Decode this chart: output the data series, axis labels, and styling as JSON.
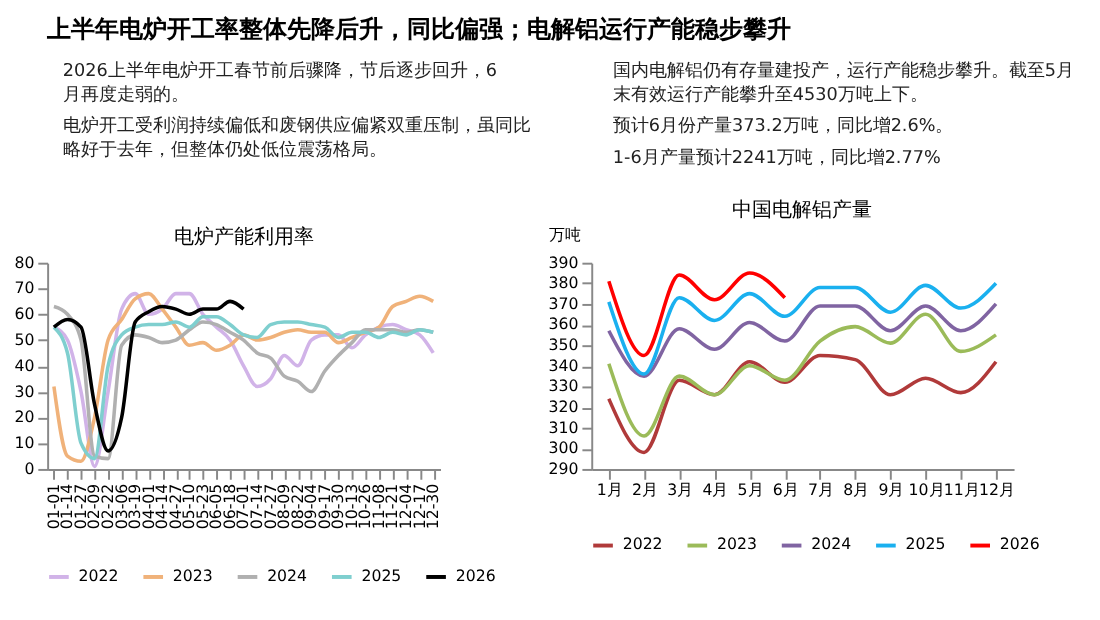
{
  "chart_data": [
    {
      "type": "other",
      "title": "上半年电炉开工率整体先降后升，同比偏强；电解铝运行产能稳步攀升",
      "annotations": [
        "2026上半年电炉开工春节前后骤降，节后逐步回升，6月再度走弱的。",
        "电炉开工受利润持续偏低和废钢供应偏紧双重压制，虽同比略好于去年，但整体仍处低位震荡格局。",
        "国内电解铝仍有存量建投产，运行产能稳步攀升。截至5月末有效运行产能攀升至4530万吨上下。",
        "预计6月份产量373.2万吨，同比增2.6%。",
        "1-6月产量预计2241万吨，同比增2.77%"
      ]
    },
    {
      "type": "line",
      "title": "电炉产能利用率",
      "categories": [
        "01-01",
        "01-14",
        "01-27",
        "02-09",
        "02-22",
        "03-06",
        "03-19",
        "04-01",
        "04-14",
        "04-27",
        "05-10",
        "05-23",
        "06-05",
        "06-18",
        "07-01",
        "07-14",
        "07-27",
        "08-09",
        "08-22",
        "09-04",
        "09-17",
        "09-30",
        "10-13",
        "10-26",
        "11-08",
        "11-21",
        "12-04",
        "12-17",
        "12-30"
      ],
      "ylim": [
        0,
        80
      ],
      "yticks": [
        0,
        10,
        20,
        30,
        40,
        50,
        60,
        70,
        80
      ],
      "grid": false,
      "legend": "bottom",
      "marker": "none",
      "line_style": "solid",
      "series": [
        {
          "name": "2022",
          "color": "#d1b3e8",
          "values": [
            55,
            50,
            30,
            1,
            30,
            62,
            68,
            60,
            62,
            68,
            68,
            60,
            55,
            50,
            40,
            32,
            35,
            44,
            40,
            50,
            52,
            52,
            47,
            52,
            55,
            56,
            54,
            52,
            45
          ]
        },
        {
          "name": "2023",
          "color": "#f0b27a",
          "values": [
            32,
            5,
            3,
            20,
            50,
            58,
            66,
            68,
            62,
            55,
            48,
            49,
            46,
            48,
            52,
            50,
            51,
            53,
            54,
            53,
            53,
            49,
            51,
            53,
            55,
            63,
            65,
            67,
            65
          ]
        },
        {
          "name": "2024",
          "color": "#b0b0b0",
          "values": [
            63,
            60,
            50,
            5,
            4,
            48,
            52,
            51,
            49,
            50,
            54,
            57,
            56,
            53,
            50,
            45,
            43,
            36,
            34,
            30,
            38,
            44,
            49,
            54,
            54,
            54,
            53,
            54,
            53
          ]
        },
        {
          "name": "2025",
          "color": "#7fcfcf",
          "values": [
            55,
            45,
            10,
            4,
            40,
            52,
            55,
            56,
            56,
            57,
            55,
            59,
            59,
            56,
            52,
            51,
            56,
            57,
            57,
            56,
            55,
            51,
            53,
            53,
            51,
            53,
            52,
            54,
            53
          ]
        },
        {
          "name": "2026",
          "color": "#000000",
          "values": [
            55,
            58,
            55,
            25,
            7,
            20,
            57,
            61,
            63,
            62,
            60,
            62,
            62,
            65,
            62,
            null,
            null,
            null,
            null,
            null,
            null,
            null,
            null,
            null,
            null,
            null,
            null,
            null,
            null
          ]
        }
      ]
    },
    {
      "type": "line",
      "title": "中国电解铝产量",
      "ylabel": "万吨",
      "categories": [
        "1月",
        "2月",
        "3月",
        "4月",
        "5月",
        "6月",
        "7月",
        "8月",
        "9月",
        "10月",
        "11月",
        "12月"
      ],
      "ylim": [
        290,
        390
      ],
      "yticks": [
        290,
        300,
        310,
        320,
        330,
        340,
        350,
        360,
        370,
        380,
        390
      ],
      "grid": false,
      "legend": "bottom",
      "marker": "none",
      "line_style": "solid",
      "series": [
        {
          "name": "2022",
          "color": "#b03a3a",
          "values": [
            324,
            298,
            333,
            326,
            342,
            332,
            345,
            343,
            326,
            334,
            327,
            342
          ]
        },
        {
          "name": "2023",
          "color": "#9bbb59",
          "values": [
            341,
            306,
            335,
            326,
            340,
            333,
            352,
            359,
            351,
            365,
            347,
            355
          ]
        },
        {
          "name": "2024",
          "color": "#8064a2",
          "values": [
            357,
            335,
            358,
            348,
            361,
            352,
            369,
            369,
            357,
            369,
            357,
            370
          ]
        },
        {
          "name": "2025",
          "color": "#1ab0ef",
          "values": [
            371,
            336,
            373,
            362,
            375,
            364,
            378,
            378,
            366,
            379,
            368,
            380
          ]
        },
        {
          "name": "2026",
          "color": "#ff0000",
          "values": [
            381,
            345,
            384,
            372,
            385,
            373,
            null,
            null,
            null,
            null,
            null,
            null
          ]
        }
      ]
    }
  ]
}
